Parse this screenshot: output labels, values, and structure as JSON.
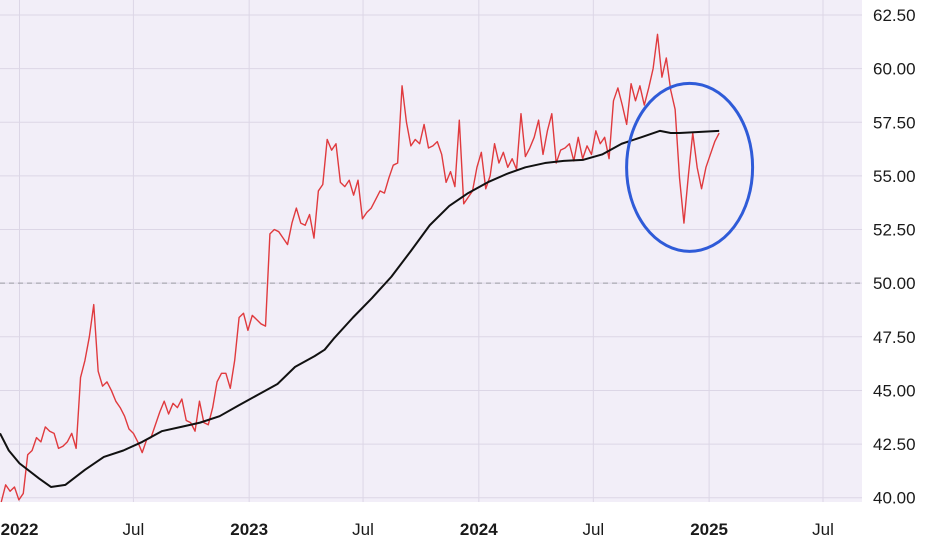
{
  "chart_data": {
    "type": "line",
    "title": "",
    "xlabel": "",
    "ylabel": "",
    "xlim": [
      "2021-12-01",
      "2025-09-01"
    ],
    "ylim": [
      39.8,
      63.2
    ],
    "y_ticks": [
      {
        "value": 40.0,
        "label": "40.00"
      },
      {
        "value": 42.5,
        "label": "42.50"
      },
      {
        "value": 45.0,
        "label": "45.00"
      },
      {
        "value": 47.5,
        "label": "47.50"
      },
      {
        "value": 50.0,
        "label": "50.00"
      },
      {
        "value": 52.5,
        "label": "52.50"
      },
      {
        "value": 55.0,
        "label": "55.00"
      },
      {
        "value": 57.5,
        "label": "57.50"
      },
      {
        "value": 60.0,
        "label": "60.00"
      },
      {
        "value": 62.5,
        "label": "62.50"
      }
    ],
    "x_ticks": [
      {
        "date": "2022-01-01",
        "label": "2022",
        "bold": true
      },
      {
        "date": "2022-07-01",
        "label": "Jul",
        "bold": false
      },
      {
        "date": "2023-01-01",
        "label": "2023",
        "bold": true
      },
      {
        "date": "2023-07-01",
        "label": "Jul",
        "bold": false
      },
      {
        "date": "2024-01-01",
        "label": "2024",
        "bold": true
      },
      {
        "date": "2024-07-01",
        "label": "Jul",
        "bold": false
      },
      {
        "date": "2025-01-01",
        "label": "2025",
        "bold": true
      },
      {
        "date": "2025-07-01",
        "label": "Jul",
        "bold": false
      }
    ],
    "reference_line": {
      "value": 50.0,
      "style": "dashed"
    },
    "grid": true,
    "background": "#f2eef8",
    "highlight_circle": {
      "center_date": "2024-12-01",
      "center_value": 55.4,
      "color": "#2f5bd8"
    },
    "series": [
      {
        "color": "#e03a3e",
        "points": [
          [
            "2021-12-03",
            39.8
          ],
          [
            "2021-12-10",
            40.6
          ],
          [
            "2021-12-17",
            40.3
          ],
          [
            "2021-12-24",
            40.5
          ],
          [
            "2021-12-31",
            39.9
          ],
          [
            "2022-01-07",
            40.2
          ],
          [
            "2022-01-14",
            42.0
          ],
          [
            "2022-01-21",
            42.2
          ],
          [
            "2022-01-28",
            42.8
          ],
          [
            "2022-02-04",
            42.6
          ],
          [
            "2022-02-11",
            43.3
          ],
          [
            "2022-02-18",
            43.1
          ],
          [
            "2022-02-25",
            43.0
          ],
          [
            "2022-03-04",
            42.3
          ],
          [
            "2022-03-11",
            42.4
          ],
          [
            "2022-03-18",
            42.6
          ],
          [
            "2022-03-25",
            43.0
          ],
          [
            "2022-04-01",
            42.3
          ],
          [
            "2022-04-08",
            45.6
          ],
          [
            "2022-04-15",
            46.4
          ],
          [
            "2022-04-22",
            47.5
          ],
          [
            "2022-04-29",
            49.0
          ],
          [
            "2022-05-06",
            45.9
          ],
          [
            "2022-05-13",
            45.2
          ],
          [
            "2022-05-20",
            45.4
          ],
          [
            "2022-05-27",
            45.0
          ],
          [
            "2022-06-03",
            44.5
          ],
          [
            "2022-06-10",
            44.2
          ],
          [
            "2022-06-17",
            43.8
          ],
          [
            "2022-06-24",
            43.2
          ],
          [
            "2022-07-01",
            43.0
          ],
          [
            "2022-07-08",
            42.6
          ],
          [
            "2022-07-15",
            42.1
          ],
          [
            "2022-07-22",
            42.7
          ],
          [
            "2022-07-29",
            42.8
          ],
          [
            "2022-08-05",
            43.4
          ],
          [
            "2022-08-12",
            44.0
          ],
          [
            "2022-08-19",
            44.5
          ],
          [
            "2022-08-26",
            43.9
          ],
          [
            "2022-09-02",
            44.4
          ],
          [
            "2022-09-09",
            44.2
          ],
          [
            "2022-09-16",
            44.6
          ],
          [
            "2022-09-23",
            43.6
          ],
          [
            "2022-09-30",
            43.5
          ],
          [
            "2022-10-07",
            43.1
          ],
          [
            "2022-10-14",
            44.5
          ],
          [
            "2022-10-21",
            43.5
          ],
          [
            "2022-10-28",
            43.4
          ],
          [
            "2022-11-04",
            44.2
          ],
          [
            "2022-11-11",
            45.4
          ],
          [
            "2022-11-18",
            45.8
          ],
          [
            "2022-11-25",
            45.8
          ],
          [
            "2022-12-02",
            45.1
          ],
          [
            "2022-12-09",
            46.4
          ],
          [
            "2022-12-16",
            48.4
          ],
          [
            "2022-12-23",
            48.6
          ],
          [
            "2022-12-30",
            47.8
          ],
          [
            "2023-01-06",
            48.5
          ],
          [
            "2023-01-13",
            48.3
          ],
          [
            "2023-01-20",
            48.1
          ],
          [
            "2023-01-27",
            48.0
          ],
          [
            "2023-02-03",
            52.3
          ],
          [
            "2023-02-10",
            52.5
          ],
          [
            "2023-02-17",
            52.4
          ],
          [
            "2023-02-24",
            52.1
          ],
          [
            "2023-03-03",
            51.8
          ],
          [
            "2023-03-10",
            52.8
          ],
          [
            "2023-03-17",
            53.5
          ],
          [
            "2023-03-24",
            52.8
          ],
          [
            "2023-03-31",
            52.7
          ],
          [
            "2023-04-07",
            53.2
          ],
          [
            "2023-04-14",
            52.1
          ],
          [
            "2023-04-21",
            54.3
          ],
          [
            "2023-04-28",
            54.6
          ],
          [
            "2023-05-05",
            56.7
          ],
          [
            "2023-05-12",
            56.2
          ],
          [
            "2023-05-19",
            56.5
          ],
          [
            "2023-05-26",
            54.7
          ],
          [
            "2023-06-02",
            54.5
          ],
          [
            "2023-06-09",
            54.8
          ],
          [
            "2023-06-16",
            54.1
          ],
          [
            "2023-06-23",
            54.8
          ],
          [
            "2023-06-30",
            53.0
          ],
          [
            "2023-07-07",
            53.3
          ],
          [
            "2023-07-14",
            53.5
          ],
          [
            "2023-07-21",
            53.9
          ],
          [
            "2023-07-28",
            54.3
          ],
          [
            "2023-08-04",
            54.2
          ],
          [
            "2023-08-11",
            54.9
          ],
          [
            "2023-08-18",
            55.5
          ],
          [
            "2023-08-25",
            55.6
          ],
          [
            "2023-09-01",
            59.2
          ],
          [
            "2023-09-08",
            57.5
          ],
          [
            "2023-09-15",
            56.4
          ],
          [
            "2023-09-22",
            56.7
          ],
          [
            "2023-09-29",
            56.5
          ],
          [
            "2023-10-06",
            57.4
          ],
          [
            "2023-10-13",
            56.3
          ],
          [
            "2023-10-20",
            56.4
          ],
          [
            "2023-10-27",
            56.6
          ],
          [
            "2023-11-03",
            56.0
          ],
          [
            "2023-11-10",
            54.7
          ],
          [
            "2023-11-17",
            55.2
          ],
          [
            "2023-11-24",
            54.5
          ],
          [
            "2023-12-01",
            57.6
          ],
          [
            "2023-12-08",
            53.7
          ],
          [
            "2023-12-15",
            54.0
          ],
          [
            "2023-12-22",
            54.3
          ],
          [
            "2023-12-29",
            55.4
          ],
          [
            "2024-01-05",
            56.1
          ],
          [
            "2024-01-12",
            54.4
          ],
          [
            "2024-01-19",
            55.0
          ],
          [
            "2024-01-26",
            56.5
          ],
          [
            "2024-02-02",
            55.6
          ],
          [
            "2024-02-09",
            56.1
          ],
          [
            "2024-02-16",
            55.4
          ],
          [
            "2024-02-23",
            55.8
          ],
          [
            "2024-03-01",
            55.3
          ],
          [
            "2024-03-08",
            57.9
          ],
          [
            "2024-03-15",
            55.9
          ],
          [
            "2024-03-22",
            56.3
          ],
          [
            "2024-03-29",
            56.8
          ],
          [
            "2024-04-05",
            57.6
          ],
          [
            "2024-04-12",
            56.0
          ],
          [
            "2024-04-19",
            57.1
          ],
          [
            "2024-04-26",
            57.9
          ],
          [
            "2024-05-03",
            55.6
          ],
          [
            "2024-05-10",
            56.2
          ],
          [
            "2024-05-17",
            56.3
          ],
          [
            "2024-05-24",
            56.5
          ],
          [
            "2024-05-31",
            55.7
          ],
          [
            "2024-06-07",
            56.8
          ],
          [
            "2024-06-14",
            55.8
          ],
          [
            "2024-06-21",
            56.4
          ],
          [
            "2024-06-28",
            56.0
          ],
          [
            "2024-07-05",
            57.1
          ],
          [
            "2024-07-12",
            56.5
          ],
          [
            "2024-07-19",
            56.8
          ],
          [
            "2024-07-26",
            55.8
          ],
          [
            "2024-08-02",
            58.5
          ],
          [
            "2024-08-09",
            59.1
          ],
          [
            "2024-08-16",
            58.3
          ],
          [
            "2024-08-23",
            57.4
          ],
          [
            "2024-08-30",
            59.3
          ],
          [
            "2024-09-06",
            58.5
          ],
          [
            "2024-09-13",
            59.2
          ],
          [
            "2024-09-20",
            58.3
          ],
          [
            "2024-09-27",
            59.1
          ],
          [
            "2024-10-04",
            60.0
          ],
          [
            "2024-10-11",
            61.6
          ],
          [
            "2024-10-18",
            59.6
          ],
          [
            "2024-10-25",
            60.5
          ],
          [
            "2024-11-01",
            59.0
          ],
          [
            "2024-11-08",
            58.1
          ],
          [
            "2024-11-15",
            54.9
          ],
          [
            "2024-11-22",
            52.8
          ],
          [
            "2024-11-29",
            55.0
          ],
          [
            "2024-12-06",
            57.0
          ],
          [
            "2024-12-13",
            55.4
          ],
          [
            "2024-12-20",
            54.4
          ],
          [
            "2024-12-27",
            55.4
          ],
          [
            "2025-01-03",
            56.0
          ],
          [
            "2025-01-10",
            56.6
          ],
          [
            "2025-01-17",
            57.0
          ]
        ]
      },
      {
        "color": "#111111",
        "points": [
          [
            "2021-12-01",
            43.0
          ],
          [
            "2021-12-15",
            42.2
          ],
          [
            "2022-01-01",
            41.6
          ],
          [
            "2022-02-01",
            40.9
          ],
          [
            "2022-02-20",
            40.5
          ],
          [
            "2022-03-15",
            40.6
          ],
          [
            "2022-04-15",
            41.3
          ],
          [
            "2022-05-15",
            41.9
          ],
          [
            "2022-06-15",
            42.2
          ],
          [
            "2022-07-15",
            42.6
          ],
          [
            "2022-08-15",
            43.1
          ],
          [
            "2022-09-15",
            43.3
          ],
          [
            "2022-10-15",
            43.5
          ],
          [
            "2022-11-15",
            43.8
          ],
          [
            "2022-12-15",
            44.3
          ],
          [
            "2023-01-15",
            44.8
          ],
          [
            "2023-02-15",
            45.3
          ],
          [
            "2023-03-15",
            46.1
          ],
          [
            "2023-04-15",
            46.6
          ],
          [
            "2023-05-01",
            46.9
          ],
          [
            "2023-05-15",
            47.4
          ],
          [
            "2023-06-15",
            48.4
          ],
          [
            "2023-07-15",
            49.3
          ],
          [
            "2023-08-15",
            50.3
          ],
          [
            "2023-09-15",
            51.5
          ],
          [
            "2023-10-15",
            52.7
          ],
          [
            "2023-11-15",
            53.6
          ],
          [
            "2023-12-15",
            54.2
          ],
          [
            "2024-01-15",
            54.7
          ],
          [
            "2024-02-15",
            55.1
          ],
          [
            "2024-03-15",
            55.4
          ],
          [
            "2024-04-15",
            55.6
          ],
          [
            "2024-05-15",
            55.7
          ],
          [
            "2024-06-15",
            55.75
          ],
          [
            "2024-07-15",
            56.0
          ],
          [
            "2024-08-15",
            56.5
          ],
          [
            "2024-09-15",
            56.8
          ],
          [
            "2024-10-15",
            57.1
          ],
          [
            "2024-11-01",
            57.0
          ],
          [
            "2024-11-15",
            57.0
          ],
          [
            "2024-12-15",
            57.05
          ],
          [
            "2025-01-17",
            57.1
          ]
        ]
      }
    ]
  }
}
